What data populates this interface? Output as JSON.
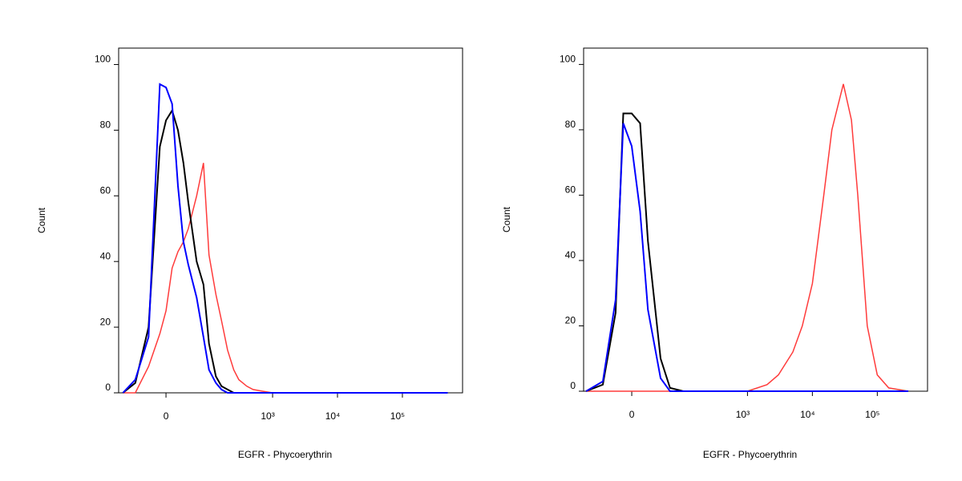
{
  "chart_data": [
    {
      "type": "line",
      "x_label": "EGFR -  Phycoerythrin",
      "y_label": "Count",
      "xscale": "biexponential",
      "x": [
        -100,
        -60,
        -30,
        -10,
        0,
        10,
        20,
        30,
        40,
        60,
        80,
        100,
        130,
        160,
        200,
        250,
        300,
        400,
        500,
        700,
        1000,
        2000,
        10000,
        100000,
        500000
      ],
      "series": [
        {
          "color": "#ff3b3b",
          "values": [
            0,
            0,
            8,
            18,
            25,
            38,
            43,
            46,
            50,
            60,
            70,
            42,
            30,
            22,
            13,
            7,
            4,
            2,
            1,
            0.5,
            0,
            0,
            0,
            0,
            0
          ]
        },
        {
          "color": "#000000",
          "values": [
            0,
            3,
            20,
            75,
            83,
            86,
            80,
            70,
            58,
            40,
            33,
            15,
            5,
            2,
            1,
            0,
            0,
            0,
            0,
            0,
            0,
            0,
            0,
            0,
            0
          ]
        },
        {
          "color": "#0000ff",
          "values": [
            0,
            4,
            17,
            94,
            93,
            88,
            63,
            46,
            39,
            29,
            17,
            7,
            3,
            1,
            0,
            0,
            0,
            0,
            0,
            0,
            0,
            0,
            0,
            0,
            0
          ]
        }
      ],
      "xlim": [
        -118,
        845000
      ],
      "ylim": [
        0,
        105
      ],
      "xticks": [
        0,
        {
          "value": 1000,
          "label": "10³"
        },
        {
          "value": 10000,
          "label": "10⁴"
        },
        {
          "value": 100000,
          "label": "10⁵"
        }
      ],
      "yticks": [
        0,
        20,
        40,
        60,
        80,
        100
      ]
    },
    {
      "type": "line",
      "x_label": "EGFR -  Phycoerythrin",
      "y_label": "Count",
      "xscale": "biexponential",
      "x": [
        -80,
        -40,
        -20,
        -10,
        0,
        10,
        20,
        40,
        60,
        100,
        200,
        1000,
        2000,
        3000,
        5000,
        7000,
        10000,
        15000,
        20000,
        30000,
        40000,
        50000,
        70000,
        100000,
        150000,
        300000
      ],
      "series": [
        {
          "color": "#ff3b3b",
          "values": [
            0,
            0,
            0,
            0,
            0,
            0,
            0,
            0,
            0,
            0,
            0,
            0,
            2,
            5,
            12,
            20,
            33,
            60,
            80,
            94,
            83,
            60,
            20,
            5,
            1,
            0
          ]
        },
        {
          "color": "#000000",
          "values": [
            0,
            2,
            24,
            85,
            85,
            82,
            46,
            10,
            1,
            0,
            0,
            0,
            0,
            0,
            0,
            0,
            0,
            0,
            0,
            0,
            0,
            0,
            0,
            0,
            0,
            0
          ]
        },
        {
          "color": "#0000ff",
          "values": [
            0,
            3,
            28,
            82,
            75,
            55,
            25,
            4,
            0,
            0,
            0,
            0,
            0,
            0,
            0,
            0,
            0,
            0,
            0,
            0,
            0,
            0,
            0,
            0,
            0,
            0
          ]
        }
      ],
      "xlim": [
        -88,
        594000
      ],
      "ylim": [
        0,
        105
      ],
      "xticks": [
        0,
        {
          "value": 1000,
          "label": "10³"
        },
        {
          "value": 10000,
          "label": "10⁴"
        },
        {
          "value": 100000,
          "label": "10⁵"
        }
      ],
      "yticks": [
        0,
        20,
        40,
        60,
        80,
        100
      ]
    }
  ]
}
